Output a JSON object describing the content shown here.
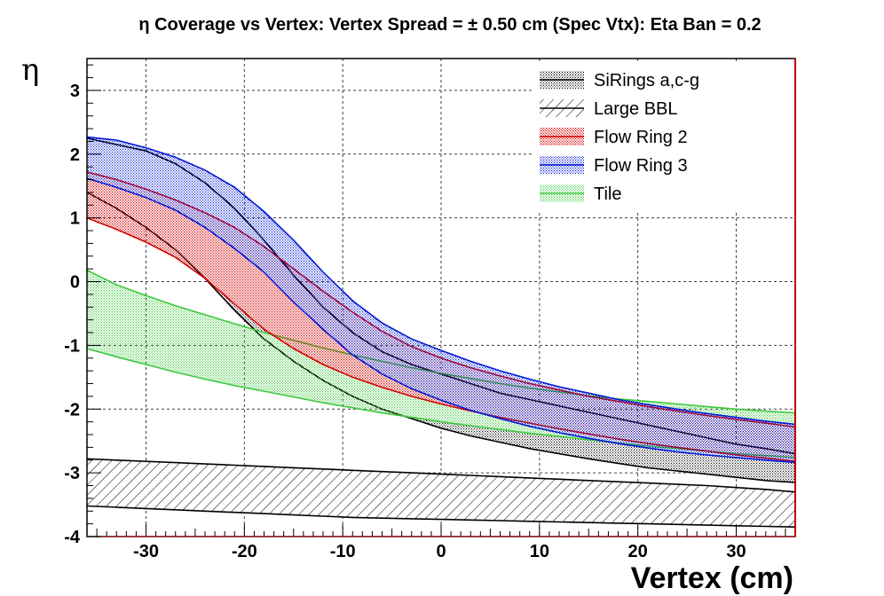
{
  "title": "η Coverage vs Vertex: Vertex Spread = ± 0.50 cm (Spec Vtx): Eta Ban = 0.2",
  "chart_data": {
    "type": "area",
    "xlabel": "Vertex (cm)",
    "ylabel": "η",
    "xlim": [
      -36,
      36
    ],
    "ylim": [
      -4,
      3.5
    ],
    "x_ticks": [
      -30,
      -20,
      -10,
      0,
      10,
      20,
      30
    ],
    "y_ticks": [
      -4,
      -3,
      -2,
      -1,
      0,
      1,
      2,
      3
    ],
    "grid": true,
    "legend_position": "top-right",
    "x": [
      -36,
      -33,
      -30,
      -27,
      -24,
      -21,
      -18,
      -15,
      -12,
      -9,
      -6,
      -3,
      0,
      3,
      6,
      9,
      12,
      15,
      18,
      21,
      24,
      27,
      30,
      33,
      36
    ],
    "series": [
      {
        "name": "SiRings a,c-g",
        "color": "#000000",
        "fill": "hatch-dots",
        "upper": [
          2.25,
          2.15,
          2.05,
          1.85,
          1.55,
          1.15,
          0.65,
          0.1,
          -0.4,
          -0.8,
          -1.1,
          -1.3,
          -1.45,
          -1.6,
          -1.75,
          -1.85,
          -1.95,
          -2.05,
          -2.15,
          -2.25,
          -2.35,
          -2.45,
          -2.55,
          -2.62,
          -2.7
        ],
        "lower": [
          1.4,
          1.15,
          0.85,
          0.5,
          0.05,
          -0.45,
          -0.9,
          -1.25,
          -1.55,
          -1.8,
          -2.0,
          -2.15,
          -2.3,
          -2.42,
          -2.52,
          -2.62,
          -2.7,
          -2.78,
          -2.85,
          -2.92,
          -2.97,
          -3.02,
          -3.07,
          -3.12,
          -3.15
        ]
      },
      {
        "name": "Large BBL",
        "color": "#000000",
        "fill": "hatch-diagonal",
        "upper": [
          -2.78,
          -2.8,
          -2.82,
          -2.84,
          -2.86,
          -2.88,
          -2.9,
          -2.92,
          -2.94,
          -2.96,
          -2.98,
          -3.0,
          -3.02,
          -3.04,
          -3.06,
          -3.08,
          -3.1,
          -3.12,
          -3.14,
          -3.16,
          -3.18,
          -3.2,
          -3.23,
          -3.26,
          -3.3
        ],
        "lower": [
          -3.52,
          -3.54,
          -3.56,
          -3.58,
          -3.6,
          -3.62,
          -3.64,
          -3.66,
          -3.68,
          -3.7,
          -3.71,
          -3.72,
          -3.73,
          -3.74,
          -3.75,
          -3.76,
          -3.77,
          -3.78,
          -3.79,
          -3.8,
          -3.81,
          -3.82,
          -3.83,
          -3.84,
          -3.85
        ]
      },
      {
        "name": "Flow Ring 2",
        "color": "#d60000",
        "fill": "red-dots",
        "upper": [
          1.72,
          1.6,
          1.45,
          1.28,
          1.08,
          0.85,
          0.55,
          0.2,
          -0.15,
          -0.48,
          -0.78,
          -1.02,
          -1.2,
          -1.35,
          -1.48,
          -1.6,
          -1.7,
          -1.8,
          -1.88,
          -1.96,
          -2.03,
          -2.1,
          -2.16,
          -2.22,
          -2.28
        ],
        "lower": [
          1.0,
          0.82,
          0.62,
          0.38,
          0.05,
          -0.35,
          -0.75,
          -1.05,
          -1.3,
          -1.5,
          -1.66,
          -1.8,
          -1.92,
          -2.03,
          -2.13,
          -2.22,
          -2.31,
          -2.39,
          -2.47,
          -2.54,
          -2.6,
          -2.66,
          -2.72,
          -2.77,
          -2.82
        ]
      },
      {
        "name": "Flow Ring 3",
        "color": "#0018d8",
        "fill": "blue-dots",
        "upper": [
          2.27,
          2.22,
          2.1,
          1.95,
          1.75,
          1.48,
          1.1,
          0.65,
          0.15,
          -0.3,
          -0.65,
          -0.9,
          -1.08,
          -1.25,
          -1.4,
          -1.53,
          -1.65,
          -1.75,
          -1.85,
          -1.93,
          -2.0,
          -2.07,
          -2.13,
          -2.19,
          -2.24
        ],
        "lower": [
          1.62,
          1.48,
          1.32,
          1.12,
          0.85,
          0.52,
          0.15,
          -0.32,
          -0.75,
          -1.15,
          -1.45,
          -1.68,
          -1.86,
          -2.02,
          -2.15,
          -2.27,
          -2.37,
          -2.46,
          -2.54,
          -2.61,
          -2.67,
          -2.72,
          -2.76,
          -2.8,
          -2.84
        ]
      },
      {
        "name": "Tile",
        "color": "#3cc83c",
        "fill": "green-dots",
        "upper": [
          0.18,
          -0.05,
          -0.22,
          -0.38,
          -0.52,
          -0.66,
          -0.8,
          -0.92,
          -1.04,
          -1.15,
          -1.25,
          -1.35,
          -1.44,
          -1.52,
          -1.6,
          -1.67,
          -1.73,
          -1.79,
          -1.84,
          -1.88,
          -1.92,
          -1.96,
          -2.0,
          -2.03,
          -2.06
        ],
        "lower": [
          -1.05,
          -1.18,
          -1.3,
          -1.42,
          -1.53,
          -1.63,
          -1.72,
          -1.81,
          -1.9,
          -1.98,
          -2.06,
          -2.13,
          -2.2,
          -2.26,
          -2.32,
          -2.38,
          -2.43,
          -2.48,
          -2.53,
          -2.58,
          -2.62,
          -2.66,
          -2.7,
          -2.73,
          -2.76
        ]
      }
    ]
  }
}
